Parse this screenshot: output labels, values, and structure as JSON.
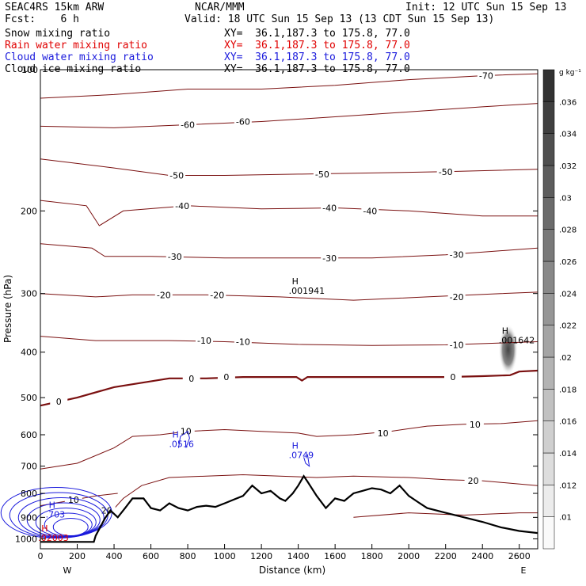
{
  "header": {
    "title": "SEAC4RS 15km ARW",
    "org": "NCAR/MMM",
    "init": "Init: 12 UTC Sun 15 Sep 13",
    "fcst": "Fcst:    6 h",
    "valid": "Valid: 18 UTC Sun 15 Sep 13 (13 CDT Sun 15 Sep 13)"
  },
  "fields": [
    {
      "name": "Snow mixing ratio",
      "xy": "XY=  36.1,187.3 to 175.8, 77.0",
      "color": "#000000"
    },
    {
      "name": "Rain water mixing ratio",
      "xy": "XY=  36.1,187.3 to 175.8, 77.0",
      "color": "#e00000"
    },
    {
      "name": "Cloud water mixing ratio",
      "xy": "XY=  36.1,187.3 to 175.8, 77.0",
      "color": "#1a1adc"
    },
    {
      "name": "Cloud ice mixing ratio",
      "xy": "XY=  36.1,187.3 to 175.8, 77.0",
      "color": "#000000"
    }
  ],
  "chart_data": {
    "type": "contour",
    "xlabel": "Distance (km)",
    "ylabel": "Pressure (hPa)",
    "xlim": [
      0,
      2700
    ],
    "ylim": [
      1050,
      100
    ],
    "yscale": "log",
    "x_ticks": [
      0,
      200,
      400,
      600,
      800,
      1000,
      1200,
      1400,
      1600,
      1800,
      2000,
      2200,
      2400,
      2600
    ],
    "y_ticks": [
      200,
      300,
      400,
      500,
      600,
      700,
      800,
      900,
      1000
    ],
    "y_tick_labels": [
      "200",
      "300",
      "400",
      "500",
      "600",
      "700",
      "800",
      "900",
      "1000"
    ],
    "top_label": "100",
    "x_end_labels": {
      "left": "W",
      "right": "E"
    },
    "colorbar": {
      "unit": "g kg⁻¹",
      "levels": [
        0.01,
        0.012,
        0.014,
        0.016,
        0.018,
        0.02,
        0.022,
        0.024,
        0.026,
        0.028,
        0.03,
        0.032,
        0.034,
        0.036
      ],
      "labels": [
        ".01",
        ".012",
        ".014",
        ".016",
        ".018",
        ".02",
        ".022",
        ".024",
        ".026",
        ".028",
        ".03",
        ".032",
        ".034",
        ".036"
      ]
    },
    "temperature_contours_color": "#7a1010",
    "temperature_contours": [
      {
        "value": -70,
        "pts": [
          [
            0,
            115
          ],
          [
            400,
            113
          ],
          [
            800,
            110
          ],
          [
            1200,
            110
          ],
          [
            1600,
            108
          ],
          [
            2000,
            105
          ],
          [
            2400,
            103
          ],
          [
            2700,
            102
          ]
        ],
        "labels": [
          {
            "x": 2420,
            "p": 103,
            "t": "-70"
          }
        ]
      },
      {
        "value": -60,
        "pts": [
          [
            0,
            132
          ],
          [
            400,
            133
          ],
          [
            800,
            131
          ],
          [
            1200,
            129
          ],
          [
            1600,
            126
          ],
          [
            2000,
            123
          ],
          [
            2400,
            120
          ],
          [
            2700,
            118
          ]
        ],
        "labels": [
          {
            "x": 800,
            "p": 131,
            "t": "-60"
          },
          {
            "x": 1100,
            "p": 129,
            "t": "-60"
          }
        ]
      },
      {
        "value": -50,
        "pts": [
          [
            0,
            155
          ],
          [
            400,
            162
          ],
          [
            700,
            168
          ],
          [
            1000,
            168
          ],
          [
            1400,
            167
          ],
          [
            1800,
            166
          ],
          [
            2200,
            165
          ],
          [
            2700,
            163
          ]
        ],
        "labels": [
          {
            "x": 740,
            "p": 168,
            "t": "-50"
          },
          {
            "x": 1530,
            "p": 167,
            "t": "-50"
          },
          {
            "x": 2200,
            "p": 165,
            "t": "-50"
          }
        ]
      },
      {
        "value": -40,
        "pts": [
          [
            0,
            190
          ],
          [
            250,
            195
          ],
          [
            320,
            215
          ],
          [
            450,
            200
          ],
          [
            800,
            195
          ],
          [
            1200,
            198
          ],
          [
            1600,
            197
          ],
          [
            2000,
            200
          ],
          [
            2400,
            205
          ],
          [
            2700,
            205
          ]
        ],
        "labels": [
          {
            "x": 770,
            "p": 195,
            "t": "-40"
          },
          {
            "x": 1570,
            "p": 197,
            "t": "-40"
          },
          {
            "x": 1790,
            "p": 200,
            "t": "-40"
          }
        ]
      },
      {
        "value": -30,
        "pts": [
          [
            0,
            235
          ],
          [
            280,
            240
          ],
          [
            350,
            250
          ],
          [
            600,
            250
          ],
          [
            1000,
            252
          ],
          [
            1400,
            252
          ],
          [
            1800,
            252
          ],
          [
            2200,
            248
          ],
          [
            2700,
            240
          ]
        ],
        "labels": [
          {
            "x": 730,
            "p": 250,
            "t": "-30"
          },
          {
            "x": 1570,
            "p": 252,
            "t": "-30"
          },
          {
            "x": 2260,
            "p": 248,
            "t": "-30"
          }
        ]
      },
      {
        "value": -20,
        "pts": [
          [
            0,
            300
          ],
          [
            300,
            305
          ],
          [
            500,
            302
          ],
          [
            900,
            302
          ],
          [
            1300,
            305
          ],
          [
            1700,
            310
          ],
          [
            2100,
            305
          ],
          [
            2500,
            300
          ],
          [
            2700,
            298
          ]
        ],
        "labels": [
          {
            "x": 670,
            "p": 302,
            "t": "-20"
          },
          {
            "x": 960,
            "p": 302,
            "t": "-20"
          },
          {
            "x": 2260,
            "p": 305,
            "t": "-20"
          }
        ]
      },
      {
        "value": -10,
        "pts": [
          [
            0,
            370
          ],
          [
            300,
            378
          ],
          [
            700,
            378
          ],
          [
            1000,
            380
          ],
          [
            1400,
            385
          ],
          [
            1800,
            387
          ],
          [
            2200,
            386
          ],
          [
            2700,
            380
          ]
        ],
        "labels": [
          {
            "x": 890,
            "p": 378,
            "t": "-10"
          },
          {
            "x": 1100,
            "p": 380,
            "t": "-10"
          },
          {
            "x": 2260,
            "p": 386,
            "t": "-10"
          }
        ]
      },
      {
        "value": 0,
        "pts": [
          [
            0,
            520
          ],
          [
            200,
            500
          ],
          [
            400,
            475
          ],
          [
            700,
            455
          ],
          [
            900,
            455
          ],
          [
            1100,
            452
          ],
          [
            1390,
            452
          ],
          [
            1420,
            460
          ],
          [
            1450,
            452
          ],
          [
            1800,
            452
          ],
          [
            2200,
            452
          ],
          [
            2400,
            450
          ],
          [
            2550,
            448
          ],
          [
            2600,
            440
          ],
          [
            2700,
            438
          ]
        ],
        "labels": [
          {
            "x": 820,
            "p": 455,
            "t": "0"
          },
          {
            "x": 1010,
            "p": 452,
            "t": "0"
          },
          {
            "x": 100,
            "p": 510,
            "t": "0"
          },
          {
            "x": 2240,
            "p": 452,
            "t": "0"
          }
        ]
      },
      {
        "value": 10,
        "pts": [
          [
            0,
            710
          ],
          [
            200,
            690
          ],
          [
            400,
            640
          ],
          [
            500,
            605
          ],
          [
            650,
            600
          ],
          [
            800,
            590
          ],
          [
            1000,
            585
          ],
          [
            1200,
            590
          ],
          [
            1400,
            595
          ],
          [
            1500,
            605
          ],
          [
            1700,
            600
          ],
          [
            1900,
            590
          ],
          [
            2100,
            575
          ],
          [
            2300,
            570
          ],
          [
            2500,
            568
          ],
          [
            2700,
            560
          ]
        ],
        "labels": [
          {
            "x": 790,
            "p": 590,
            "t": "10"
          },
          {
            "x": 1860,
            "p": 595,
            "t": "10"
          },
          {
            "x": 2360,
            "p": 570,
            "t": "10"
          }
        ]
      },
      {
        "value": 20,
        "pts": [
          [
            380,
            880
          ],
          [
            450,
            820
          ],
          [
            550,
            770
          ],
          [
            700,
            740
          ],
          [
            900,
            735
          ],
          [
            1100,
            730
          ],
          [
            1300,
            735
          ],
          [
            1500,
            740
          ],
          [
            1700,
            735
          ],
          [
            2000,
            740
          ],
          [
            2200,
            748
          ],
          [
            2400,
            752
          ],
          [
            2700,
            770
          ]
        ],
        "labels": [
          {
            "x": 360,
            "p": 870,
            "t": "20"
          },
          {
            "x": 2350,
            "p": 752,
            "t": "20"
          }
        ]
      },
      {
        "value": 10,
        "pts": [
          [
            0,
            850
          ],
          [
            150,
            830
          ],
          [
            300,
            810
          ],
          [
            420,
            800
          ]
        ],
        "labels": [
          {
            "x": 180,
            "p": 825,
            "t": "10"
          }
        ]
      },
      {
        "value": 30,
        "pts": [
          [
            1700,
            900
          ],
          [
            2000,
            880
          ],
          [
            2300,
            890
          ],
          [
            2600,
            880
          ],
          [
            2700,
            880
          ]
        ],
        "labels": []
      }
    ],
    "terrain": [
      [
        0,
        1015
      ],
      [
        290,
        1015
      ],
      [
        300,
        985
      ],
      [
        350,
        905
      ],
      [
        380,
        870
      ],
      [
        420,
        900
      ],
      [
        460,
        860
      ],
      [
        500,
        820
      ],
      [
        560,
        820
      ],
      [
        600,
        860
      ],
      [
        650,
        870
      ],
      [
        700,
        840
      ],
      [
        750,
        860
      ],
      [
        800,
        870
      ],
      [
        850,
        855
      ],
      [
        900,
        850
      ],
      [
        950,
        855
      ],
      [
        1000,
        840
      ],
      [
        1050,
        825
      ],
      [
        1100,
        810
      ],
      [
        1150,
        770
      ],
      [
        1200,
        800
      ],
      [
        1250,
        790
      ],
      [
        1300,
        820
      ],
      [
        1330,
        830
      ],
      [
        1370,
        800
      ],
      [
        1400,
        770
      ],
      [
        1430,
        735
      ],
      [
        1450,
        755
      ],
      [
        1500,
        810
      ],
      [
        1550,
        860
      ],
      [
        1600,
        820
      ],
      [
        1650,
        830
      ],
      [
        1700,
        800
      ],
      [
        1750,
        790
      ],
      [
        1800,
        780
      ],
      [
        1850,
        785
      ],
      [
        1900,
        800
      ],
      [
        1950,
        770
      ],
      [
        2000,
        810
      ],
      [
        2050,
        835
      ],
      [
        2100,
        860
      ],
      [
        2150,
        870
      ],
      [
        2200,
        880
      ],
      [
        2300,
        900
      ],
      [
        2400,
        920
      ],
      [
        2500,
        945
      ],
      [
        2600,
        962
      ],
      [
        2700,
        972
      ]
    ],
    "maxima": [
      {
        "x": 1400,
        "p": 290,
        "t": ".001941"
      },
      {
        "x": 2540,
        "p": 370,
        "t": ".001642"
      },
      {
        "x": 750,
        "p": 615,
        "t": ".0516"
      },
      {
        "x": 1400,
        "p": 650,
        "t": ".0749"
      },
      {
        "x": 80,
        "p": 870,
        "t": ".703"
      },
      {
        "x": 40,
        "p": 975,
        "t": ".02003"
      }
    ]
  }
}
